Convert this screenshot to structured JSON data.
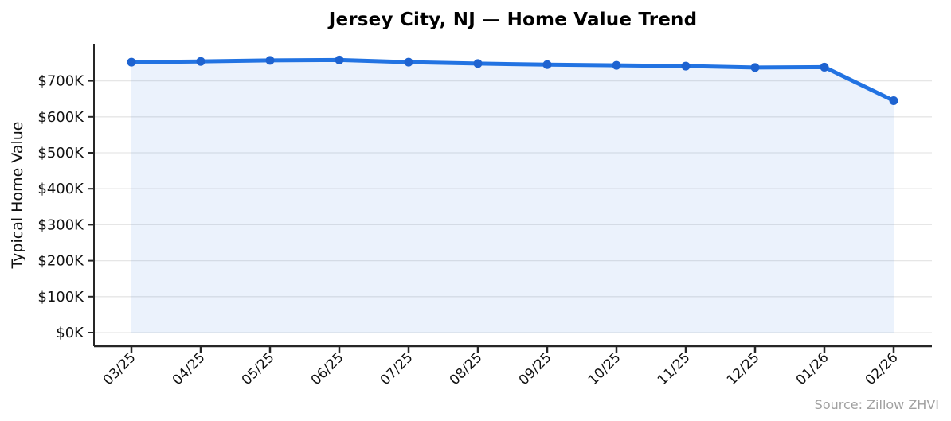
{
  "chart_data": {
    "type": "line",
    "variant": "line-with-area-fill-and-markers",
    "title": "Jersey City, NJ — Home Value Trend",
    "ylabel": "Typical Home Value",
    "xlabel": "",
    "source_note": "Source: Zillow ZHVI",
    "categories": [
      "03/25",
      "04/25",
      "05/25",
      "06/25",
      "07/25",
      "08/25",
      "09/25",
      "10/25",
      "11/25",
      "12/25",
      "01/26",
      "02/26"
    ],
    "series": [
      {
        "name": "Typical Home Value",
        "values_thousands": [
          752,
          754,
          757,
          758,
          752,
          748,
          745,
          743,
          741,
          737,
          738,
          645
        ]
      }
    ],
    "ytick_values_thousands": [
      0,
      100,
      200,
      300,
      400,
      500,
      600,
      700
    ],
    "ytick_labels": [
      "$0K",
      "$100K",
      "$200K",
      "$300K",
      "$400K",
      "$500K",
      "$600K",
      "$700K"
    ],
    "ylim_thousands": [
      0,
      800
    ],
    "xtick_rotation_degrees": 45,
    "grid": "horizontal-only",
    "legend": "none",
    "colors": {
      "line": "#2273e2",
      "marker": "#1e63d0",
      "area_fill": "rgba(34, 115, 226, 0.09)",
      "gridline": "#e6e6e6",
      "axis_spine": "#262626",
      "tick_text": "#111111",
      "title_text": "#000000",
      "source_text": "#a0a0a0",
      "background": "#ffffff"
    }
  }
}
